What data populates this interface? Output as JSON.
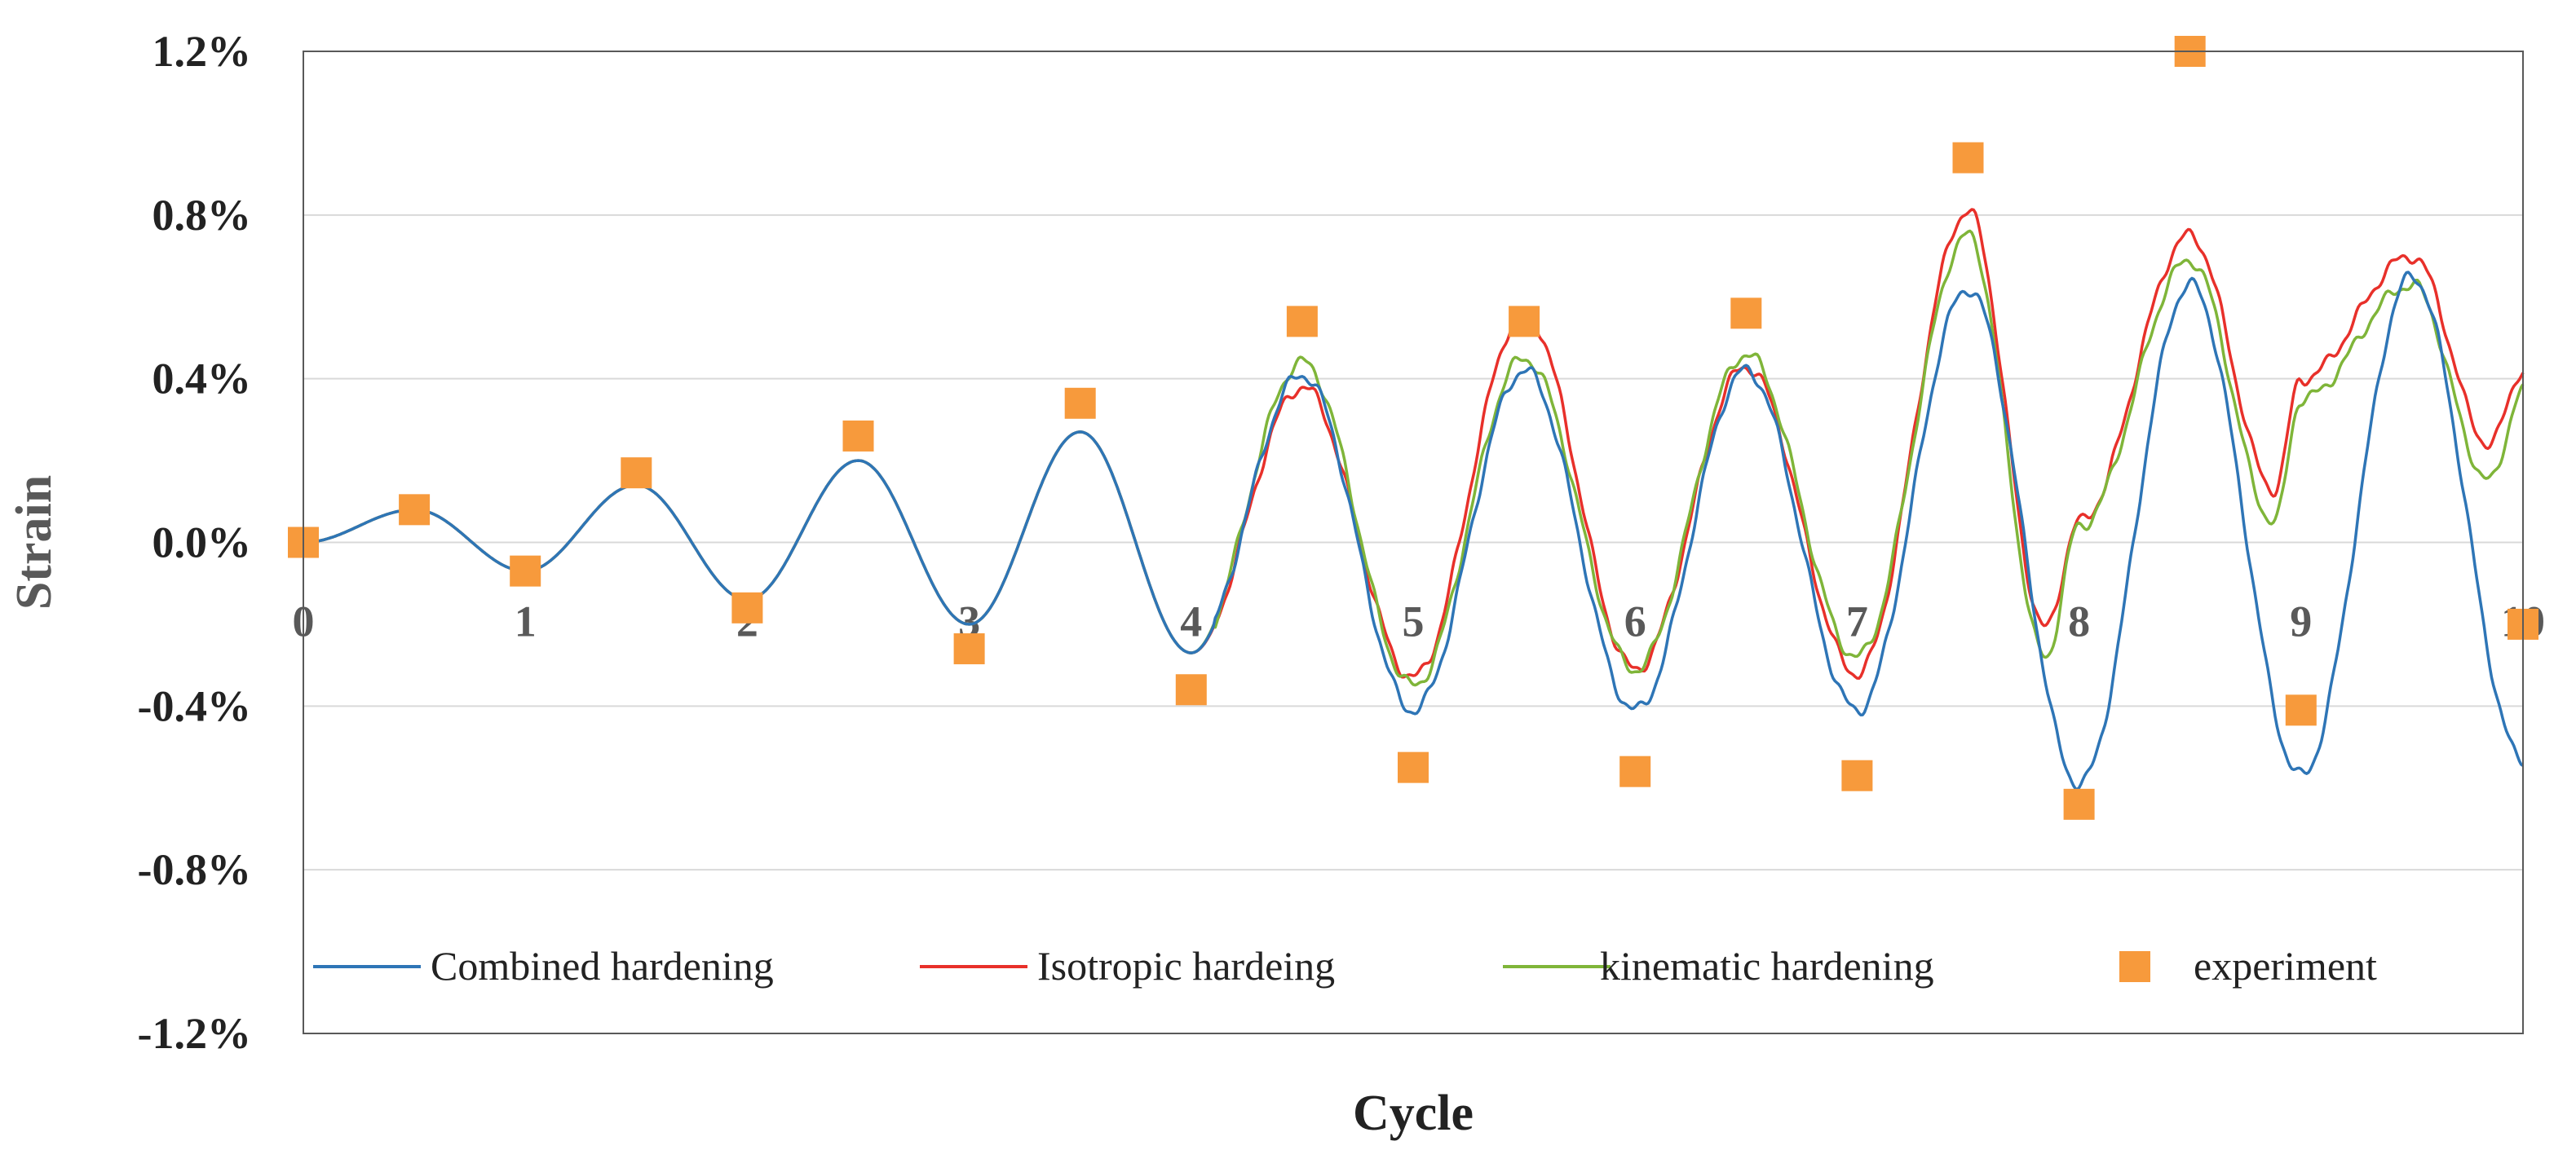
{
  "chart_data": {
    "type": "line",
    "title": "",
    "xlabel": "Cycle",
    "ylabel": "Strain",
    "xlim": [
      0,
      10
    ],
    "ylim": [
      -1.2,
      1.2
    ],
    "x_ticks": [
      "0",
      "1",
      "2",
      "3",
      "4",
      "5",
      "6",
      "7",
      "8",
      "9",
      "10"
    ],
    "y_ticks": [
      "1.2%",
      "0.8%",
      "0.4%",
      "0.0%",
      "-0.4%",
      "-0.8%",
      "-1.2%"
    ],
    "grid": "horizontal",
    "legend_position": "bottom",
    "series": [
      {
        "name": "Combined hardening",
        "kind": "line",
        "color": "#2E75B6",
        "peaks": [
          [
            0.0,
            0.0
          ],
          [
            0.5,
            0.08
          ],
          [
            1.0,
            -0.07
          ],
          [
            1.5,
            0.14
          ],
          [
            2.0,
            -0.14
          ],
          [
            2.5,
            0.2
          ],
          [
            3.0,
            -0.2
          ],
          [
            3.5,
            0.27
          ],
          [
            4.0,
            -0.27
          ],
          [
            4.5,
            0.41
          ],
          [
            5.0,
            -0.41
          ],
          [
            5.5,
            0.42
          ],
          [
            6.0,
            -0.41
          ],
          [
            6.5,
            0.42
          ],
          [
            7.0,
            -0.41
          ],
          [
            7.5,
            0.62
          ],
          [
            8.0,
            -0.59
          ],
          [
            8.5,
            0.63
          ],
          [
            9.0,
            -0.57
          ],
          [
            9.5,
            0.65
          ],
          [
            10.0,
            -0.53
          ]
        ]
      },
      {
        "name": "Isotropic hardeing",
        "kind": "line",
        "color": "#E8302A",
        "peaks": [
          [
            0.0,
            0.0
          ],
          [
            0.5,
            0.08
          ],
          [
            1.0,
            -0.07
          ],
          [
            1.5,
            0.14
          ],
          [
            2.0,
            -0.14
          ],
          [
            2.5,
            0.2
          ],
          [
            3.0,
            -0.2
          ],
          [
            3.5,
            0.27
          ],
          [
            4.0,
            -0.27
          ],
          [
            4.5,
            0.38
          ],
          [
            5.0,
            -0.33
          ],
          [
            5.5,
            0.56
          ],
          [
            6.0,
            -0.31
          ],
          [
            6.5,
            0.43
          ],
          [
            7.0,
            -0.32
          ],
          [
            7.5,
            0.81
          ],
          [
            7.85,
            -0.21
          ],
          [
            8.0,
            0.05
          ],
          [
            8.5,
            0.75
          ],
          [
            8.88,
            0.13
          ],
          [
            9.0,
            0.4
          ],
          [
            9.5,
            0.7
          ],
          [
            9.85,
            0.24
          ],
          [
            10.0,
            0.42
          ]
        ]
      },
      {
        "name": "kinematic hardening",
        "kind": "line",
        "color": "#7FB539",
        "peaks": [
          [
            0.0,
            0.0
          ],
          [
            0.5,
            0.08
          ],
          [
            1.0,
            -0.07
          ],
          [
            1.5,
            0.14
          ],
          [
            2.0,
            -0.14
          ],
          [
            2.5,
            0.2
          ],
          [
            3.0,
            -0.2
          ],
          [
            3.5,
            0.27
          ],
          [
            4.0,
            -0.27
          ],
          [
            4.5,
            0.44
          ],
          [
            5.0,
            -0.35
          ],
          [
            5.5,
            0.45
          ],
          [
            6.0,
            -0.31
          ],
          [
            6.5,
            0.46
          ],
          [
            7.0,
            -0.28
          ],
          [
            7.5,
            0.75
          ],
          [
            7.85,
            -0.28
          ],
          [
            8.0,
            0.04
          ],
          [
            8.5,
            0.69
          ],
          [
            8.88,
            0.05
          ],
          [
            9.0,
            0.35
          ],
          [
            9.5,
            0.63
          ],
          [
            9.85,
            0.15
          ],
          [
            10.0,
            0.37
          ]
        ]
      },
      {
        "name": "experiment",
        "kind": "marker",
        "color": "#F79A3C",
        "points": [
          [
            0.0,
            0.0
          ],
          [
            0.5,
            0.08
          ],
          [
            1.0,
            -0.07
          ],
          [
            1.5,
            0.17
          ],
          [
            2.0,
            -0.16
          ],
          [
            2.5,
            0.26
          ],
          [
            3.0,
            -0.26
          ],
          [
            3.5,
            0.34
          ],
          [
            4.0,
            -0.36
          ],
          [
            4.5,
            0.54
          ],
          [
            5.0,
            -0.55
          ],
          [
            5.5,
            0.54
          ],
          [
            6.0,
            -0.56
          ],
          [
            6.5,
            0.56
          ],
          [
            7.0,
            -0.57
          ],
          [
            7.5,
            0.94
          ],
          [
            8.0,
            -0.64
          ],
          [
            8.5,
            1.2
          ],
          [
            9.0,
            -0.41
          ],
          [
            10.0,
            -0.2
          ]
        ]
      }
    ]
  }
}
